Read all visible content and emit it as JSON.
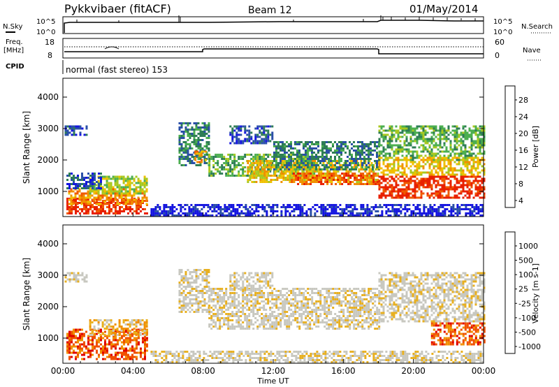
{
  "header": {
    "title": "Pykkvibaer (fitACF)",
    "beam": "Beam 12",
    "date": "01/May/2014"
  },
  "top_panels": {
    "nsky_label": "N.Sky",
    "nsky_ticks": [
      "10^5",
      "10^0"
    ],
    "nsearch_label": "N.Search",
    "nsearch_ticks": [
      "10^5",
      "10^0"
    ],
    "freq_label_line1": "Freq.",
    "freq_label_line2": "[MHz]",
    "freq_ticks": [
      "18",
      "8"
    ],
    "nave_label": "Nave",
    "nave_ticks": [
      "60",
      "0"
    ],
    "cpid_label": "CPID",
    "cpid_text": "normal (fast stereo) 153"
  },
  "colors": {
    "power": [
      "#1515e0",
      "#2a4fa8",
      "#2e7d55",
      "#4caf50",
      "#a8c820",
      "#f0c000",
      "#f09000",
      "#f05a00",
      "#e82000"
    ],
    "velocity": [
      "#e00000",
      "#f05000",
      "#f09000",
      "#e8b020",
      "#c8c8c0",
      "#c8c8c0",
      "#60c040",
      "#2e8b57",
      "#2a5aa8",
      "#1a2aa0"
    ]
  },
  "chart_data": [
    {
      "type": "heatmap",
      "name": "power",
      "ylabel": "Slant Range [km]",
      "ylim": [
        200,
        4600
      ],
      "yticks": [
        "4000",
        "3000",
        "2000",
        "1000"
      ],
      "xlim_hours": [
        0,
        24
      ],
      "xticks": [
        "00:00",
        "04:00",
        "08:00",
        "12:00",
        "16:00",
        "20:00",
        "00:00"
      ],
      "colorbar_label": "Power [dB]",
      "colorbar_ticks": [
        "28",
        "24",
        "20",
        "16",
        "12",
        "8",
        "4"
      ],
      "bands": [
        {
          "t": [
            0.1,
            1.3
          ],
          "r": [
            2800,
            3100
          ],
          "level": 1
        },
        {
          "t": [
            0.2,
            4.8
          ],
          "r": [
            300,
            800
          ],
          "level": 8
        },
        {
          "t": [
            0.3,
            4.8
          ],
          "r": [
            600,
            1100
          ],
          "level": 6
        },
        {
          "t": [
            1.5,
            4.8
          ],
          "r": [
            900,
            1500
          ],
          "level": 4
        },
        {
          "t": [
            0.2,
            2.2
          ],
          "r": [
            1100,
            1600
          ],
          "level": 1
        },
        {
          "t": [
            6.6,
            8.3
          ],
          "r": [
            1800,
            3200
          ],
          "level": 2
        },
        {
          "t": [
            7.5,
            8.2
          ],
          "r": [
            1900,
            2300
          ],
          "level": 6
        },
        {
          "t": [
            8.3,
            14.5
          ],
          "r": [
            1500,
            2200
          ],
          "level": 3
        },
        {
          "t": [
            9.5,
            12.0
          ],
          "r": [
            2500,
            3100
          ],
          "level": 1
        },
        {
          "t": [
            10.5,
            18.0
          ],
          "r": [
            1300,
            2000
          ],
          "level": 5
        },
        {
          "t": [
            13.0,
            18.0
          ],
          "r": [
            1200,
            1600
          ],
          "level": 7
        },
        {
          "t": [
            12.0,
            18.0
          ],
          "r": [
            1700,
            2600
          ],
          "level": 2
        },
        {
          "t": [
            18.0,
            24.0
          ],
          "r": [
            2000,
            3100
          ],
          "level": 3
        },
        {
          "t": [
            18.0,
            24.0
          ],
          "r": [
            1500,
            2100
          ],
          "level": 5
        },
        {
          "t": [
            18.0,
            24.0
          ],
          "r": [
            800,
            1500
          ],
          "level": 8
        },
        {
          "t": [
            5.0,
            24.0
          ],
          "r": [
            250,
            600
          ],
          "level": 0
        }
      ]
    },
    {
      "type": "heatmap",
      "name": "velocity",
      "ylabel": "Slant Range [km]",
      "ylim": [
        200,
        4600
      ],
      "yticks": [
        "4000",
        "3000",
        "2000",
        "1000"
      ],
      "xlim_hours": [
        0,
        24
      ],
      "xticks": [
        "00:00",
        "04:00",
        "08:00",
        "12:00",
        "16:00",
        "20:00",
        "00:00"
      ],
      "xlabel": "Time UT",
      "colorbar_label": "Velocity [m s-1]",
      "colorbar_ticks": [
        "1000",
        "500",
        "100",
        "25",
        "-25",
        "-100",
        "-500",
        "-1000"
      ],
      "bands": [
        {
          "t": [
            0.1,
            1.3
          ],
          "r": [
            2800,
            3100
          ],
          "level": 4
        },
        {
          "t": [
            0.2,
            4.8
          ],
          "r": [
            300,
            1300
          ],
          "level": 1
        },
        {
          "t": [
            1.5,
            4.8
          ],
          "r": [
            1100,
            1600
          ],
          "level": 3
        },
        {
          "t": [
            6.6,
            8.3
          ],
          "r": [
            1800,
            3200
          ],
          "level": 4
        },
        {
          "t": [
            8.3,
            18.0
          ],
          "r": [
            1300,
            2600
          ],
          "level": 4
        },
        {
          "t": [
            9.5,
            12.0
          ],
          "r": [
            2500,
            3100
          ],
          "level": 4
        },
        {
          "t": [
            18.0,
            24.0
          ],
          "r": [
            1500,
            3100
          ],
          "level": 4
        },
        {
          "t": [
            21.0,
            24.0
          ],
          "r": [
            800,
            1500
          ],
          "level": 1
        },
        {
          "t": [
            5.0,
            24.0
          ],
          "r": [
            250,
            600
          ],
          "level": 4
        }
      ]
    }
  ]
}
